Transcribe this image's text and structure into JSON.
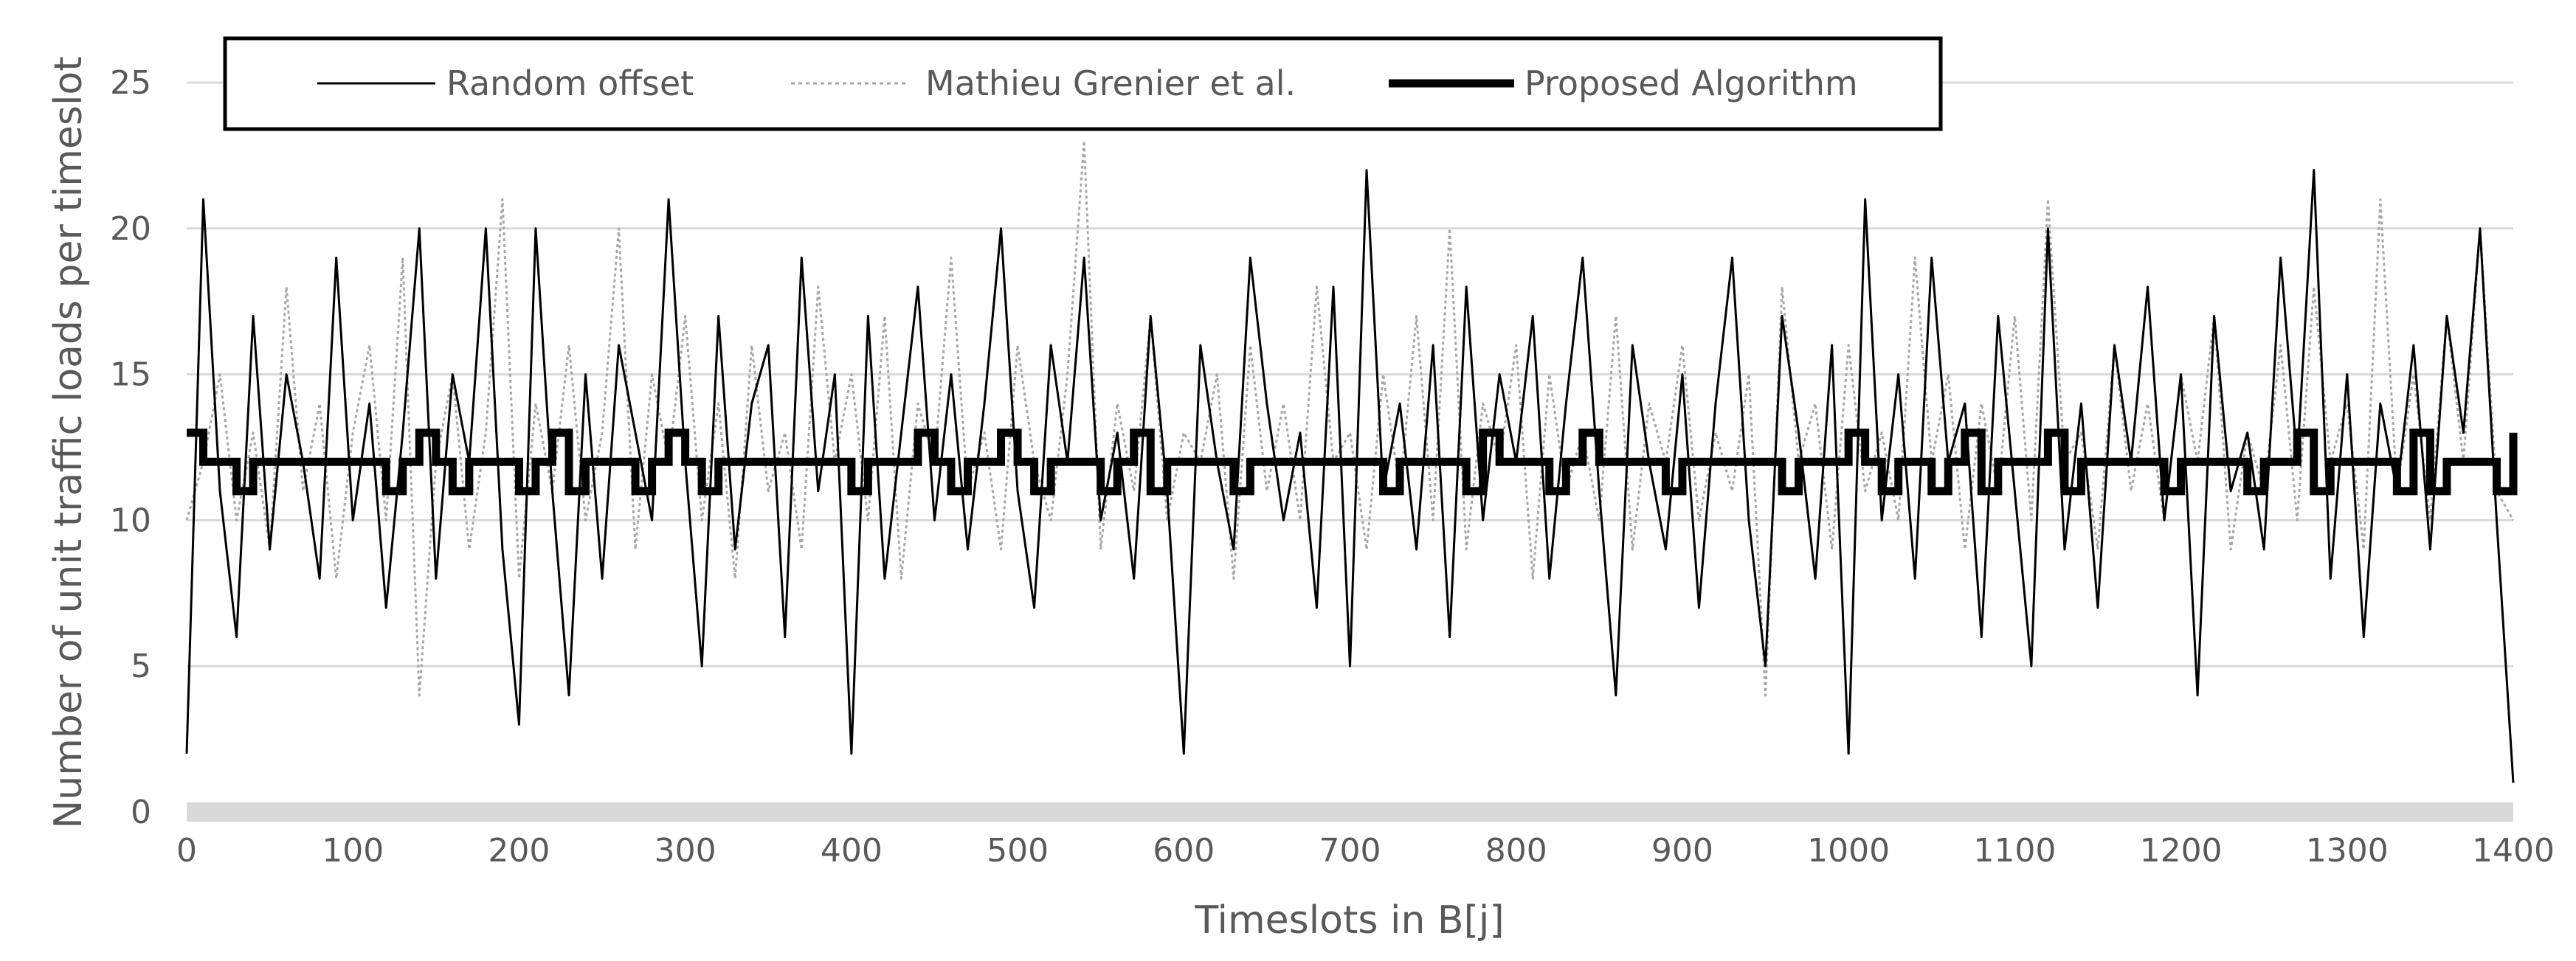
{
  "chart_data": {
    "type": "line",
    "title": "",
    "xlabel": "Timeslots in B[j]",
    "ylabel": "Number of unit traffic loads per timeslot",
    "xlim": [
      0,
      1400
    ],
    "ylim": [
      0,
      25
    ],
    "x_ticks": [
      "0",
      "100",
      "200",
      "300",
      "400",
      "500",
      "600",
      "700",
      "800",
      "900",
      "1000",
      "1100",
      "1200",
      "1300",
      "1400"
    ],
    "y_ticks": [
      "0",
      "5",
      "10",
      "15",
      "20",
      "25"
    ],
    "grid": "horizontal",
    "legend_position": "top",
    "series": [
      {
        "name": "Random offset",
        "style": "thin-solid",
        "color": "#000000",
        "x": [
          0,
          10,
          20,
          30,
          40,
          50,
          60,
          70,
          80,
          90,
          100,
          110,
          120,
          130,
          140,
          150,
          160,
          170,
          180,
          190,
          200,
          210,
          220,
          230,
          240,
          250,
          260,
          270,
          280,
          290,
          300,
          310,
          320,
          330,
          340,
          350,
          360,
          370,
          380,
          390,
          400,
          410,
          420,
          430,
          440,
          450,
          460,
          470,
          480,
          490,
          500,
          510,
          520,
          530,
          540,
          550,
          560,
          570,
          580,
          590,
          600,
          610,
          620,
          630,
          640,
          650,
          660,
          670,
          680,
          690,
          700,
          710,
          720,
          730,
          740,
          750,
          760,
          770,
          780,
          790,
          800,
          810,
          820,
          830,
          840,
          850,
          860,
          870,
          880,
          890,
          900,
          910,
          920,
          930,
          940,
          950,
          960,
          970,
          980,
          990,
          1000,
          1010,
          1020,
          1030,
          1040,
          1050,
          1060,
          1070,
          1080,
          1090,
          1100,
          1110,
          1120,
          1130,
          1140,
          1150,
          1160,
          1170,
          1180,
          1190,
          1200,
          1210,
          1220,
          1230,
          1240,
          1250,
          1260,
          1270,
          1280,
          1290,
          1300,
          1310,
          1320,
          1330,
          1340,
          1350,
          1360,
          1370,
          1380,
          1390,
          1400
        ],
        "values": [
          2,
          21,
          11,
          6,
          17,
          9,
          15,
          12,
          8,
          19,
          10,
          14,
          7,
          13,
          20,
          8,
          15,
          12,
          20,
          9,
          3,
          20,
          11,
          4,
          15,
          8,
          16,
          13,
          10,
          21,
          12,
          5,
          17,
          9,
          14,
          16,
          6,
          19,
          11,
          15,
          2,
          17,
          8,
          13,
          18,
          10,
          15,
          9,
          14,
          20,
          11,
          7,
          16,
          12,
          19,
          10,
          13,
          8,
          17,
          11,
          2,
          16,
          12,
          9,
          19,
          14,
          10,
          13,
          7,
          18,
          5,
          22,
          11,
          14,
          9,
          16,
          6,
          18,
          10,
          15,
          12,
          17,
          8,
          14,
          19,
          11,
          4,
          16,
          12,
          9,
          15,
          7,
          14,
          19,
          10,
          5,
          17,
          13,
          8,
          16,
          2,
          21,
          10,
          15,
          8,
          19,
          12,
          14,
          6,
          17,
          11,
          5,
          20,
          9,
          14,
          7,
          16,
          12,
          18,
          10,
          15,
          4,
          17,
          11,
          13,
          9,
          19,
          12,
          22,
          8,
          15,
          6,
          14,
          11,
          16,
          9,
          17,
          13,
          20,
          10,
          1
        ]
      },
      {
        "name": "Mathieu Grenier et al.",
        "style": "thin-dotted",
        "color": "#a6a6a6",
        "x": [
          0,
          10,
          20,
          30,
          40,
          50,
          60,
          70,
          80,
          90,
          100,
          110,
          120,
          130,
          140,
          150,
          160,
          170,
          180,
          190,
          200,
          210,
          220,
          230,
          240,
          250,
          260,
          270,
          280,
          290,
          300,
          310,
          320,
          330,
          340,
          350,
          360,
          370,
          380,
          390,
          400,
          410,
          420,
          430,
          440,
          450,
          460,
          470,
          480,
          490,
          500,
          510,
          520,
          530,
          540,
          550,
          560,
          570,
          580,
          590,
          600,
          610,
          620,
          630,
          640,
          650,
          660,
          670,
          680,
          690,
          700,
          710,
          720,
          730,
          740,
          750,
          760,
          770,
          780,
          790,
          800,
          810,
          820,
          830,
          840,
          850,
          860,
          870,
          880,
          890,
          900,
          910,
          920,
          930,
          940,
          950,
          960,
          970,
          980,
          990,
          1000,
          1010,
          1020,
          1030,
          1040,
          1050,
          1060,
          1070,
          1080,
          1090,
          1100,
          1110,
          1120,
          1130,
          1140,
          1150,
          1160,
          1170,
          1180,
          1190,
          1200,
          1210,
          1220,
          1230,
          1240,
          1250,
          1260,
          1270,
          1280,
          1290,
          1300,
          1310,
          1320,
          1330,
          1340,
          1350,
          1360,
          1370,
          1380,
          1390,
          1400
        ],
        "values": [
          10,
          12,
          15,
          10,
          13,
          9,
          18,
          11,
          14,
          8,
          13,
          16,
          10,
          19,
          4,
          12,
          15,
          9,
          13,
          21,
          8,
          14,
          11,
          16,
          10,
          13,
          20,
          9,
          15,
          12,
          17,
          10,
          14,
          8,
          16,
          11,
          13,
          9,
          18,
          12,
          15,
          10,
          17,
          8,
          14,
          12,
          19,
          11,
          13,
          9,
          16,
          12,
          10,
          15,
          23,
          9,
          14,
          11,
          17,
          10,
          13,
          12,
          15,
          8,
          16,
          11,
          14,
          10,
          18,
          12,
          13,
          9,
          15,
          11,
          17,
          10,
          20,
          9,
          14,
          12,
          16,
          8,
          15,
          11,
          13,
          10,
          17,
          9,
          14,
          12,
          16,
          10,
          13,
          11,
          15,
          4,
          18,
          12,
          14,
          9,
          16,
          11,
          13,
          10,
          19,
          12,
          15,
          9,
          14,
          11,
          17,
          10,
          21,
          12,
          13,
          9,
          16,
          11,
          14,
          10,
          15,
          12,
          17,
          9,
          13,
          11,
          16,
          10,
          18,
          12,
          14,
          9,
          21,
          11,
          15,
          10,
          17,
          12,
          20,
          11,
          10
        ]
      },
      {
        "name": "Proposed Algorithm",
        "style": "thick-step",
        "color": "#000000",
        "x": [
          0,
          10,
          20,
          30,
          40,
          50,
          60,
          70,
          80,
          90,
          100,
          110,
          120,
          130,
          140,
          150,
          160,
          170,
          180,
          190,
          200,
          210,
          220,
          230,
          240,
          250,
          260,
          270,
          280,
          290,
          300,
          310,
          320,
          330,
          340,
          350,
          360,
          370,
          380,
          390,
          400,
          410,
          420,
          430,
          440,
          450,
          460,
          470,
          480,
          490,
          500,
          510,
          520,
          530,
          540,
          550,
          560,
          570,
          580,
          590,
          600,
          610,
          620,
          630,
          640,
          650,
          660,
          670,
          680,
          690,
          700,
          710,
          720,
          730,
          740,
          750,
          760,
          770,
          780,
          790,
          800,
          810,
          820,
          830,
          840,
          850,
          860,
          870,
          880,
          890,
          900,
          910,
          920,
          930,
          940,
          950,
          960,
          970,
          980,
          990,
          1000,
          1010,
          1020,
          1030,
          1040,
          1050,
          1060,
          1070,
          1080,
          1090,
          1100,
          1110,
          1120,
          1130,
          1140,
          1150,
          1160,
          1170,
          1180,
          1190,
          1200,
          1210,
          1220,
          1230,
          1240,
          1250,
          1260,
          1270,
          1280,
          1290,
          1300,
          1310,
          1320,
          1330,
          1340,
          1350,
          1360,
          1370,
          1380,
          1390,
          1400
        ],
        "values": [
          13,
          12,
          12,
          11,
          12,
          12,
          12,
          12,
          12,
          12,
          12,
          12,
          11,
          12,
          13,
          12,
          11,
          12,
          12,
          12,
          11,
          12,
          13,
          11,
          12,
          12,
          12,
          11,
          12,
          13,
          12,
          11,
          12,
          12,
          12,
          12,
          12,
          12,
          12,
          12,
          11,
          12,
          12,
          12,
          13,
          12,
          11,
          12,
          12,
          13,
          12,
          11,
          12,
          12,
          12,
          11,
          12,
          13,
          11,
          12,
          12,
          12,
          12,
          11,
          12,
          12,
          12,
          12,
          12,
          12,
          12,
          12,
          11,
          12,
          12,
          12,
          12,
          11,
          13,
          12,
          12,
          12,
          11,
          12,
          13,
          12,
          12,
          12,
          12,
          11,
          12,
          12,
          12,
          12,
          12,
          12,
          11,
          12,
          12,
          12,
          13,
          12,
          11,
          12,
          12,
          11,
          12,
          13,
          11,
          12,
          12,
          12,
          13,
          11,
          12,
          12,
          12,
          12,
          12,
          11,
          12,
          12,
          12,
          12,
          11,
          12,
          12,
          13,
          11,
          12,
          12,
          12,
          12,
          11,
          13,
          11,
          12,
          12,
          12,
          11,
          13
        ]
      }
    ]
  }
}
